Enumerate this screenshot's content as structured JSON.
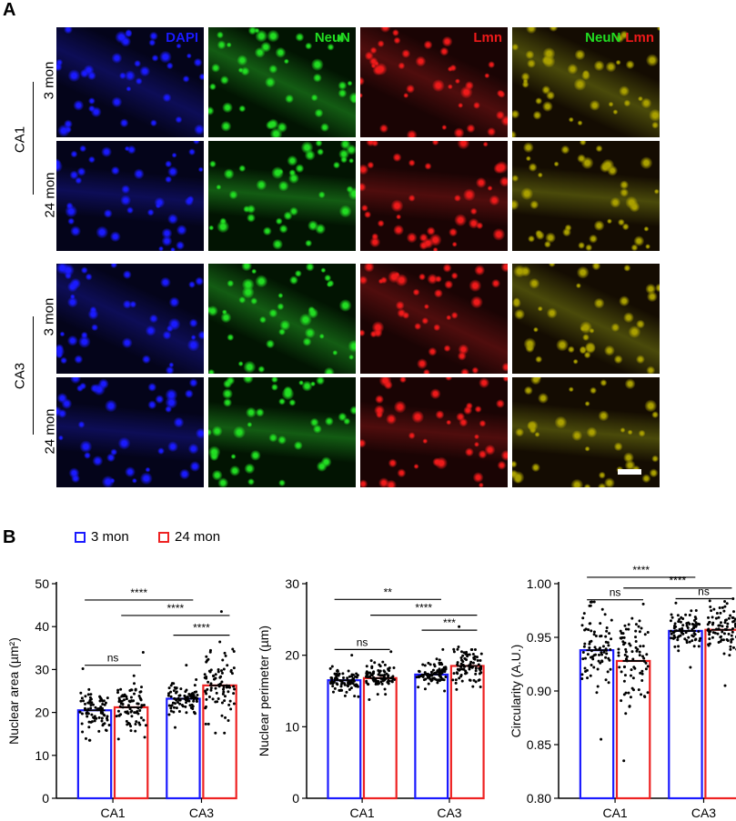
{
  "panel_a": {
    "letter": "A",
    "column_labels": {
      "dapi": "DAPI",
      "neun": "NeuN",
      "lmn": "Lmn",
      "merge_neun": "NeuN",
      "merge_lmn": "Lmn"
    },
    "region_labels": [
      "CA1",
      "CA3"
    ],
    "age_labels": [
      "3 mon",
      "24 mon",
      "3 mon",
      "24 mon"
    ],
    "colors": {
      "dapi": "#1a1aff",
      "neun": "#22dd22",
      "lmn": "#ee1a1a"
    }
  },
  "panel_b": {
    "letter": "B",
    "legend": [
      {
        "label": "3 mon",
        "color": "#1a1aff"
      },
      {
        "label": "24 mon",
        "color": "#ee2222"
      }
    ]
  },
  "chart_data": [
    {
      "type": "bar",
      "categories": [
        "CA1",
        "CA3"
      ],
      "series": [
        {
          "name": "3 mon",
          "values": [
            20.5,
            23.2
          ],
          "color": "#1a1aff"
        },
        {
          "name": "24 mon",
          "values": [
            21.2,
            26.3
          ],
          "color": "#ee2222"
        }
      ],
      "ylabel": "Nuclear area (µm²)",
      "ylim": [
        0,
        50
      ],
      "yticks": [
        0,
        10,
        20,
        30,
        40,
        50
      ],
      "scatter_ranges": [
        [
          13.5,
          30.2
        ],
        [
          13.8,
          34.0
        ],
        [
          16.5,
          31.0
        ],
        [
          15.2,
          43.5
        ]
      ],
      "annotations": [
        {
          "label": "ns",
          "from": 0,
          "to": 1,
          "y": 31.0
        },
        {
          "label": "****",
          "from": 0,
          "to": 2,
          "y": 46.2
        },
        {
          "label": "****",
          "from": 1,
          "to": 3,
          "y": 42.6
        },
        {
          "label": "****",
          "from": 2,
          "to": 3,
          "y": 38.0
        }
      ]
    },
    {
      "type": "bar",
      "categories": [
        "CA1",
        "CA3"
      ],
      "series": [
        {
          "name": "3 mon",
          "values": [
            16.5,
            17.3
          ],
          "color": "#1a1aff"
        },
        {
          "name": "24 mon",
          "values": [
            16.8,
            18.5
          ],
          "color": "#ee2222"
        }
      ],
      "ylabel": "Nuclear perimeter (µm)",
      "ylim": [
        0,
        30
      ],
      "yticks": [
        0,
        10,
        20,
        30
      ],
      "scatter_ranges": [
        [
          14.2,
          20.0
        ],
        [
          13.8,
          20.5
        ],
        [
          15.0,
          20.8
        ],
        [
          15.2,
          24.0
        ]
      ],
      "annotations": [
        {
          "label": "ns",
          "from": 0,
          "to": 1,
          "y": 20.8
        },
        {
          "label": "**",
          "from": 0,
          "to": 2,
          "y": 27.8
        },
        {
          "label": "****",
          "from": 1,
          "to": 3,
          "y": 25.6
        },
        {
          "label": "***",
          "from": 2,
          "to": 3,
          "y": 23.5
        }
      ]
    },
    {
      "type": "bar",
      "categories": [
        "CA1",
        "CA3"
      ],
      "series": [
        {
          "name": "3 mon",
          "values": [
            0.938,
            0.956
          ],
          "color": "#1a1aff"
        },
        {
          "name": "24 mon",
          "values": [
            0.928,
            0.957
          ],
          "color": "#ee2222"
        }
      ],
      "ylabel": "Circularity (A.U.)",
      "ylim": [
        0.8,
        1.0
      ],
      "yticks": [
        0.8,
        0.85,
        0.9,
        0.95,
        1.0
      ],
      "scatter_ranges": [
        [
          0.855,
          0.983
        ],
        [
          0.835,
          0.981
        ],
        [
          0.922,
          0.982
        ],
        [
          0.905,
          0.986
        ]
      ],
      "annotations": [
        {
          "label": "ns",
          "from": 0,
          "to": 1,
          "y": 0.985
        },
        {
          "label": "****",
          "from": 0,
          "to": 2,
          "y": 1.006
        },
        {
          "label": "****",
          "from": 1,
          "to": 3,
          "y": 0.996
        },
        {
          "label": "ns",
          "from": 2,
          "to": 3,
          "y": 0.986
        }
      ]
    }
  ]
}
